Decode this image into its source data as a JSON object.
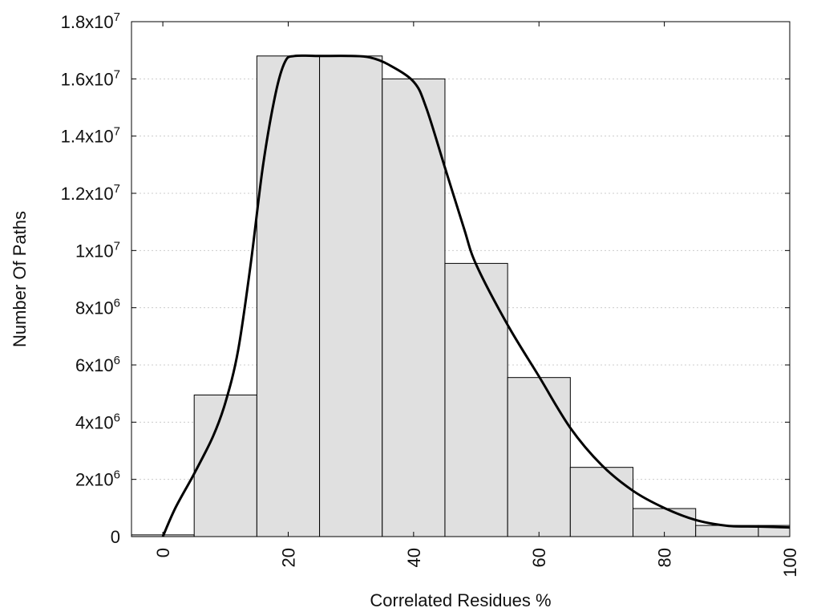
{
  "chart_data": {
    "type": "bar",
    "title": "",
    "xlabel": "Correlated Residues %",
    "ylabel": "Number Of Paths",
    "xlim": [
      -5,
      100
    ],
    "ylim": [
      0,
      18000000
    ],
    "grid": true,
    "bin_width": 10,
    "bins": [
      {
        "center": 0,
        "value": 60000
      },
      {
        "center": 10,
        "value": 4950000
      },
      {
        "center": 20,
        "value": 16800000
      },
      {
        "center": 30,
        "value": 16800000
      },
      {
        "center": 40,
        "value": 16000000
      },
      {
        "center": 50,
        "value": 9550000
      },
      {
        "center": 60,
        "value": 5560000
      },
      {
        "center": 70,
        "value": 2420000
      },
      {
        "center": 80,
        "value": 980000
      },
      {
        "center": 90,
        "value": 390000
      },
      {
        "center": 100,
        "value": 390000
      }
    ],
    "x_ticks": [
      {
        "value": 0,
        "label": "0"
      },
      {
        "value": 20,
        "label": "20"
      },
      {
        "value": 40,
        "label": "40"
      },
      {
        "value": 60,
        "label": "60"
      },
      {
        "value": 80,
        "label": "80"
      },
      {
        "value": 100,
        "label": "100"
      }
    ],
    "y_ticks": [
      {
        "value": 0,
        "base": "0",
        "exp": ""
      },
      {
        "value": 2000000,
        "base": "2x10",
        "exp": "6"
      },
      {
        "value": 4000000,
        "base": "4x10",
        "exp": "6"
      },
      {
        "value": 6000000,
        "base": "6x10",
        "exp": "6"
      },
      {
        "value": 8000000,
        "base": "8x10",
        "exp": "6"
      },
      {
        "value": 10000000,
        "base": "1x10",
        "exp": "7"
      },
      {
        "value": 12000000,
        "base": "1.2x10",
        "exp": "7"
      },
      {
        "value": 14000000,
        "base": "1.4x10",
        "exp": "7"
      },
      {
        "value": 16000000,
        "base": "1.6x10",
        "exp": "7"
      },
      {
        "value": 18000000,
        "base": "1.8x10",
        "exp": "7"
      }
    ],
    "curve": [
      [
        0,
        0
      ],
      [
        2,
        1000000
      ],
      [
        5,
        2200000
      ],
      [
        8,
        3500000
      ],
      [
        10,
        4700000
      ],
      [
        12,
        6500000
      ],
      [
        14,
        9500000
      ],
      [
        16,
        13000000
      ],
      [
        18,
        15500000
      ],
      [
        19.5,
        16600000
      ],
      [
        21,
        16800000
      ],
      [
        25,
        16800000
      ],
      [
        30,
        16800000
      ],
      [
        33,
        16750000
      ],
      [
        36,
        16500000
      ],
      [
        40,
        15900000
      ],
      [
        42,
        15000000
      ],
      [
        45,
        12900000
      ],
      [
        48,
        10800000
      ],
      [
        50,
        9500000
      ],
      [
        55,
        7400000
      ],
      [
        60,
        5600000
      ],
      [
        65,
        3800000
      ],
      [
        70,
        2500000
      ],
      [
        75,
        1600000
      ],
      [
        80,
        1000000
      ],
      [
        85,
        580000
      ],
      [
        90,
        380000
      ],
      [
        95,
        350000
      ],
      [
        100,
        320000
      ]
    ]
  }
}
